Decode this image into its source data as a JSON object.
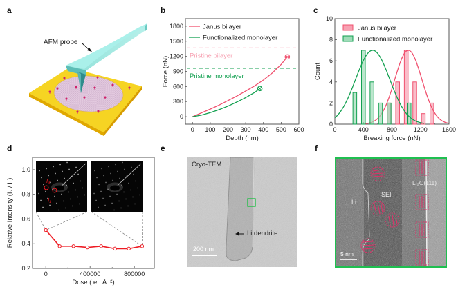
{
  "panels": {
    "a": {
      "label": "a",
      "annotation": "AFM probe"
    },
    "b": {
      "label": "b"
    },
    "c": {
      "label": "c"
    },
    "d": {
      "label": "d"
    },
    "e": {
      "label": "e",
      "title": "Cryo-TEM",
      "annotation": "Li dendrite",
      "scale_bar": "200 nm"
    },
    "f": {
      "label": "f",
      "labels": {
        "li": "Li",
        "sei": "SEI",
        "li2o": "Li₂O(111)"
      },
      "scale_bar": "5 nm"
    }
  },
  "colors": {
    "janus": "#f0506e",
    "janus_light": "#f7a1b2",
    "func": "#12a050",
    "func_light": "#9fdcb8",
    "dose": "#ee1c24",
    "frame_f": "#1fbf50",
    "fringe": "#e0306a"
  },
  "chart_data": [
    {
      "id": "b",
      "type": "line",
      "title": "",
      "xlabel": "Depth (nm)",
      "ylabel": "Force (nN)",
      "xlim": [
        -40,
        600
      ],
      "ylim": [
        -150,
        1950
      ],
      "xticks": [
        0,
        100,
        200,
        300,
        400,
        500,
        600
      ],
      "yticks": [
        0,
        300,
        600,
        900,
        1200,
        1500,
        1800
      ],
      "legend": "top-left",
      "series": [
        {
          "name": "Janus bilayer",
          "color_key": "janus",
          "x": [
            0,
            50,
            100,
            150,
            200,
            250,
            300,
            350,
            400,
            450,
            500,
            535
          ],
          "y": [
            0,
            75,
            150,
            230,
            320,
            410,
            510,
            610,
            730,
            870,
            1040,
            1190
          ],
          "end_marker": true
        },
        {
          "name": "Functionalized monolayer",
          "color_key": "func",
          "x": [
            0,
            50,
            100,
            150,
            200,
            250,
            300,
            350,
            380
          ],
          "y": [
            0,
            30,
            80,
            140,
            210,
            290,
            380,
            480,
            560
          ],
          "end_marker": true
        }
      ],
      "reference_lines": [
        {
          "name": "Pristine bilayer",
          "y": 1370,
          "color_key": "janus_light"
        },
        {
          "name": "Pristine monolayer",
          "y": 960,
          "color_key": "func"
        }
      ]
    },
    {
      "id": "c",
      "type": "bar",
      "title": "",
      "xlabel": "Breaking force (nN)",
      "ylabel": "Count",
      "xlim": [
        0,
        1600
      ],
      "ylim": [
        0,
        10
      ],
      "xticks": [
        0,
        400,
        800,
        1200,
        1600
      ],
      "yticks": [
        0,
        2,
        4,
        6,
        8,
        10
      ],
      "legend": "top-left",
      "series": [
        {
          "name": "Janus bilayer",
          "color_key": "janus",
          "x": [
            760,
            880,
            1000,
            1120,
            1240,
            1360
          ],
          "values": [
            2,
            4,
            7,
            4,
            1,
            2
          ],
          "fit": {
            "type": "gaussian",
            "mean": 1030,
            "sd": 190,
            "peak": 7
          }
        },
        {
          "name": "Functionalized monolayer",
          "color_key": "func",
          "x": [
            280,
            400,
            520,
            640,
            760,
            1040
          ],
          "values": [
            3,
            7,
            4,
            2,
            2,
            2
          ],
          "fit": {
            "type": "gaussian",
            "mean": 530,
            "sd": 240,
            "peak": 7
          }
        }
      ]
    },
    {
      "id": "d",
      "type": "line",
      "title": "",
      "xlabel": "Dose ( e⁻ Å⁻²)",
      "ylabel": "Relative Intensity (I₃ / I₁)",
      "xlim": [
        -120000,
        980000
      ],
      "ylim": [
        0.2,
        1.1
      ],
      "xticks": [
        0,
        400000,
        800000
      ],
      "xtick_labels": [
        "0",
        "400000",
        "800000"
      ],
      "yticks": [
        0.2,
        0.4,
        0.6,
        0.8,
        1.0
      ],
      "ytick_labels": [
        "0.2",
        "0.4",
        "0.6",
        "0.8",
        "1.0"
      ],
      "legend": "none",
      "series": [
        {
          "name": "Relative intensity",
          "color_key": "dose",
          "x": [
            0,
            125000,
            250000,
            375000,
            500000,
            625000,
            750000,
            870000
          ],
          "y": [
            0.51,
            0.38,
            0.38,
            0.37,
            0.38,
            0.36,
            0.36,
            0.38
          ]
        }
      ],
      "insets": [
        {
          "name": "SAED pattern initial",
          "labels": [
            "I₃",
            "I₁"
          ]
        },
        {
          "name": "SAED pattern final"
        }
      ]
    }
  ]
}
